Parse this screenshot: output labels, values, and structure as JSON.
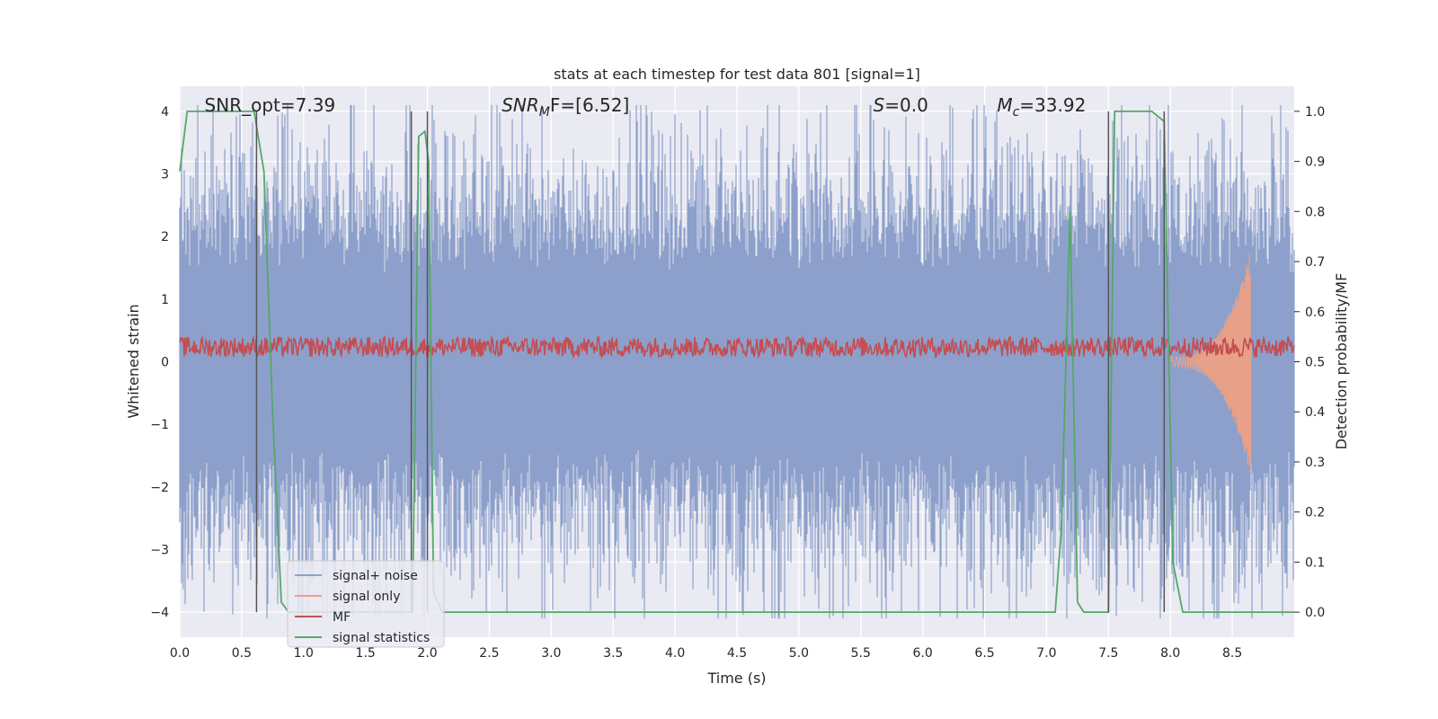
{
  "chart_data": {
    "type": "line",
    "title": "stats at each timestep for test data 801 [signal=1]",
    "xlabel": "Time (s)",
    "ylabel_left": "Whitened strain",
    "ylabel_right": "Detection probability/MF",
    "xlim": [
      0.0,
      9.0
    ],
    "ylim_left": [
      -4.4,
      4.4
    ],
    "ylim_right": [
      -0.05,
      1.05
    ],
    "xticks": [
      "0.0",
      "0.5",
      "1.0",
      "1.5",
      "2.0",
      "2.5",
      "3.0",
      "3.5",
      "4.0",
      "4.5",
      "5.0",
      "5.5",
      "6.0",
      "6.5",
      "7.0",
      "7.5",
      "8.0",
      "8.5"
    ],
    "yticks_left": [
      "−4",
      "−3",
      "−2",
      "−1",
      "0",
      "1",
      "2",
      "3",
      "4"
    ],
    "yticks_right": [
      "0.0",
      "0.1",
      "0.2",
      "0.3",
      "0.4",
      "0.5",
      "0.6",
      "0.7",
      "0.8",
      "0.9",
      "1.0"
    ],
    "grid": true,
    "legend_position": "lower-left",
    "annotations": [
      {
        "text": "SNR_opt=7.39",
        "x": 0.2,
        "y": 4.1,
        "italic": false
      },
      {
        "text": "SNR",
        "sub": "M",
        "after": "F=[6.52]",
        "x": 2.6,
        "y": 4.1,
        "italic": true
      },
      {
        "text": "S",
        "after": "=0.0",
        "x": 5.6,
        "y": 4.1,
        "italic": true
      },
      {
        "text": "M",
        "sub": "c",
        "after": "=33.92",
        "x": 6.6,
        "y": 4.1,
        "italic": true
      }
    ],
    "vertical_lines_x": [
      0.62,
      1.87,
      2.0,
      7.5,
      7.95
    ],
    "series": [
      {
        "name": "signal+ noise",
        "color": "#8da0cb",
        "kind": "noise",
        "axis": "left"
      },
      {
        "name": "signal only",
        "color": "#e8a088",
        "kind": "chirp",
        "axis": "left",
        "start": 8.0,
        "end": 8.65,
        "peak_amplitude": 1.75
      },
      {
        "name": "MF",
        "color": "#c44e52",
        "kind": "mf",
        "axis": "left",
        "center": 0.22,
        "amplitude": 0.25
      },
      {
        "name": "signal statistics",
        "color": "#55a868",
        "kind": "step",
        "axis": "right",
        "x": [
          0.0,
          0.06,
          0.6,
          0.68,
          0.75,
          0.82,
          0.88,
          1.85,
          1.88,
          1.93,
          1.98,
          2.01,
          2.05,
          2.12,
          7.07,
          7.12,
          7.19,
          7.25,
          7.3,
          7.5,
          7.55,
          7.6,
          7.85,
          7.95,
          8.02,
          8.1,
          9.0
        ],
        "y": [
          0.88,
          1.0,
          1.0,
          0.88,
          0.4,
          0.02,
          0.0,
          0.0,
          0.0,
          0.95,
          0.96,
          0.9,
          0.04,
          0.0,
          0.0,
          0.17,
          0.8,
          0.02,
          0.0,
          0.0,
          1.0,
          1.0,
          1.0,
          0.98,
          0.1,
          0.0,
          0.0
        ]
      }
    ]
  }
}
